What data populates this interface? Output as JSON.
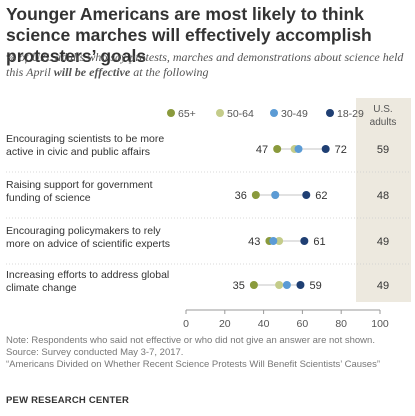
{
  "title": "Younger Americans are most likely to think science marches will effectively accomplish protesters’ goals",
  "subtitle": {
    "before": "% of U.S. adults who say protests, marches and demonstrations about science held this April ",
    "bold": "will be effective",
    "after": " at the following"
  },
  "chart_data": {
    "type": "dot",
    "title": "Younger Americans are most likely to think science marches will effectively accomplish protesters’ goals",
    "subtitle": "% of U.S. adults who say protests, marches and demonstrations about science held this April will be effective at the following",
    "xlim": [
      0,
      100
    ],
    "xticks": [
      "0",
      "20",
      "40",
      "60",
      "80",
      "100"
    ],
    "categories": [
      "Encouraging scientists to be more active in civic and public affairs",
      "Raising support for government funding of science",
      "Encouraging policymakers to rely more on advice of scientific experts",
      "Increasing efforts to address global climate change"
    ],
    "category_lines": [
      [
        "Encouraging scientists to be more",
        "active in civic and public affairs"
      ],
      [
        "Raising support for government",
        "funding of science"
      ],
      [
        "Encouraging policymakers to rely",
        "more on advice of scientific experts"
      ],
      [
        "Increasing efforts to address global",
        "climate change"
      ]
    ],
    "series": [
      {
        "name": "65+",
        "color": "#8a9a3c",
        "values": [
          47,
          36,
          43,
          35
        ]
      },
      {
        "name": "50-64",
        "color": "#c4cc8a",
        "values": [
          56,
          46,
          48,
          48
        ]
      },
      {
        "name": "30-49",
        "color": "#5b9bd5",
        "values": [
          58,
          46,
          45,
          52
        ]
      },
      {
        "name": "18-29",
        "color": "#1f3f73",
        "values": [
          72,
          62,
          61,
          59
        ]
      }
    ],
    "labeled": {
      "min_series": "65+",
      "max_series": "18-29",
      "min_labels": [
        "47",
        "36",
        "43",
        "35"
      ],
      "max_labels": [
        "72",
        "62",
        "61",
        "59"
      ]
    },
    "total_column": {
      "header_line1": "U.S.",
      "header_line2": "adults",
      "values": [
        "59",
        "48",
        "49",
        "49"
      ]
    },
    "legend_placement": "top",
    "grid": false
  },
  "notes": [
    "Note: Respondents who said not effective or who did not give an answer are not shown.",
    "Source: Survey conducted May 3-7, 2017.",
    "“Americans Divided on Whether Recent Science Protests Will Benefit Scientists’ Causes”"
  ],
  "source_org": "PEW RESEARCH CENTER",
  "colors": {
    "total_column_bg": "#ede9df",
    "axis": "#999999",
    "text": "#333333"
  }
}
